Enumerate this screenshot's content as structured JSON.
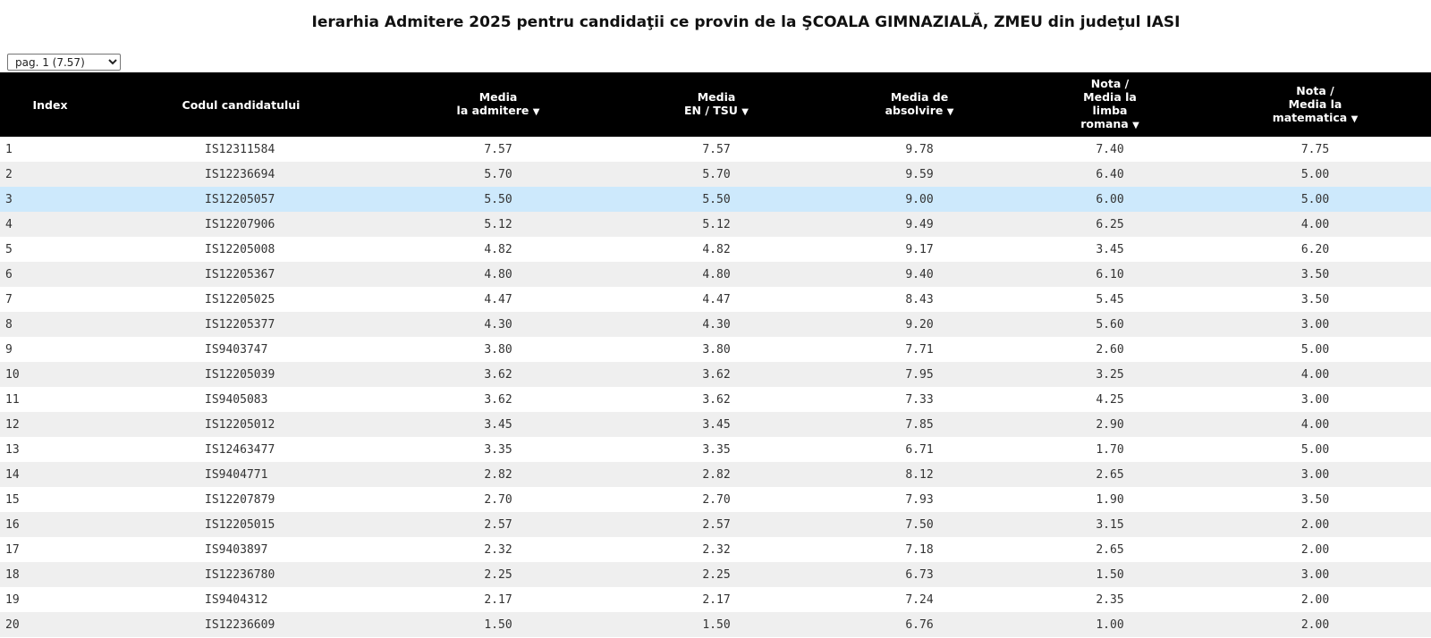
{
  "title": "Ierarhia Admitere 2025 pentru candidaţii ce provin de la ŞCOALA GIMNAZIALĂ, ZMEU din judeţul IASI",
  "page_select": {
    "value": "pag. 1 (7.57)",
    "options": [
      "pag. 1 (7.57)"
    ]
  },
  "columns": [
    {
      "key": "index",
      "lines": [
        "Index"
      ],
      "sortable": false
    },
    {
      "key": "code",
      "lines": [
        "Codul candidatului"
      ],
      "sortable": false
    },
    {
      "key": "media_admitere",
      "lines": [
        "Media",
        "la admitere"
      ],
      "sortable": true
    },
    {
      "key": "media_en",
      "lines": [
        "Media",
        "EN / TSU"
      ],
      "sortable": true
    },
    {
      "key": "media_absolvire",
      "lines": [
        "Media de",
        "absolvire"
      ],
      "sortable": true
    },
    {
      "key": "nota_romana",
      "lines": [
        "Nota /",
        "Media la",
        "limba",
        "romana"
      ],
      "sortable": true
    },
    {
      "key": "nota_mate",
      "lines": [
        "Nota /",
        "Media la",
        "matematica"
      ],
      "sortable": true
    }
  ],
  "sort_icon": "triangle-down-icon",
  "selected_row": 3,
  "rows": [
    [
      "1",
      "IS12311584",
      "7.57",
      "7.57",
      "9.78",
      "7.40",
      "7.75"
    ],
    [
      "2",
      "IS12236694",
      "5.70",
      "5.70",
      "9.59",
      "6.40",
      "5.00"
    ],
    [
      "3",
      "IS12205057",
      "5.50",
      "5.50",
      "9.00",
      "6.00",
      "5.00"
    ],
    [
      "4",
      "IS12207906",
      "5.12",
      "5.12",
      "9.49",
      "6.25",
      "4.00"
    ],
    [
      "5",
      "IS12205008",
      "4.82",
      "4.82",
      "9.17",
      "3.45",
      "6.20"
    ],
    [
      "6",
      "IS12205367",
      "4.80",
      "4.80",
      "9.40",
      "6.10",
      "3.50"
    ],
    [
      "7",
      "IS12205025",
      "4.47",
      "4.47",
      "8.43",
      "5.45",
      "3.50"
    ],
    [
      "8",
      "IS12205377",
      "4.30",
      "4.30",
      "9.20",
      "5.60",
      "3.00"
    ],
    [
      "9",
      "IS9403747",
      "3.80",
      "3.80",
      "7.71",
      "2.60",
      "5.00"
    ],
    [
      "10",
      "IS12205039",
      "3.62",
      "3.62",
      "7.95",
      "3.25",
      "4.00"
    ],
    [
      "11",
      "IS9405083",
      "3.62",
      "3.62",
      "7.33",
      "4.25",
      "3.00"
    ],
    [
      "12",
      "IS12205012",
      "3.45",
      "3.45",
      "7.85",
      "2.90",
      "4.00"
    ],
    [
      "13",
      "IS12463477",
      "3.35",
      "3.35",
      "6.71",
      "1.70",
      "5.00"
    ],
    [
      "14",
      "IS9404771",
      "2.82",
      "2.82",
      "8.12",
      "2.65",
      "3.00"
    ],
    [
      "15",
      "IS12207879",
      "2.70",
      "2.70",
      "7.93",
      "1.90",
      "3.50"
    ],
    [
      "16",
      "IS12205015",
      "2.57",
      "2.57",
      "7.50",
      "3.15",
      "2.00"
    ],
    [
      "17",
      "IS9403897",
      "2.32",
      "2.32",
      "7.18",
      "2.65",
      "2.00"
    ],
    [
      "18",
      "IS12236780",
      "2.25",
      "2.25",
      "6.73",
      "1.50",
      "3.00"
    ],
    [
      "19",
      "IS9404312",
      "2.17",
      "2.17",
      "7.24",
      "2.35",
      "2.00"
    ],
    [
      "20",
      "IS12236609",
      "1.50",
      "1.50",
      "6.76",
      "1.00",
      "2.00"
    ]
  ]
}
